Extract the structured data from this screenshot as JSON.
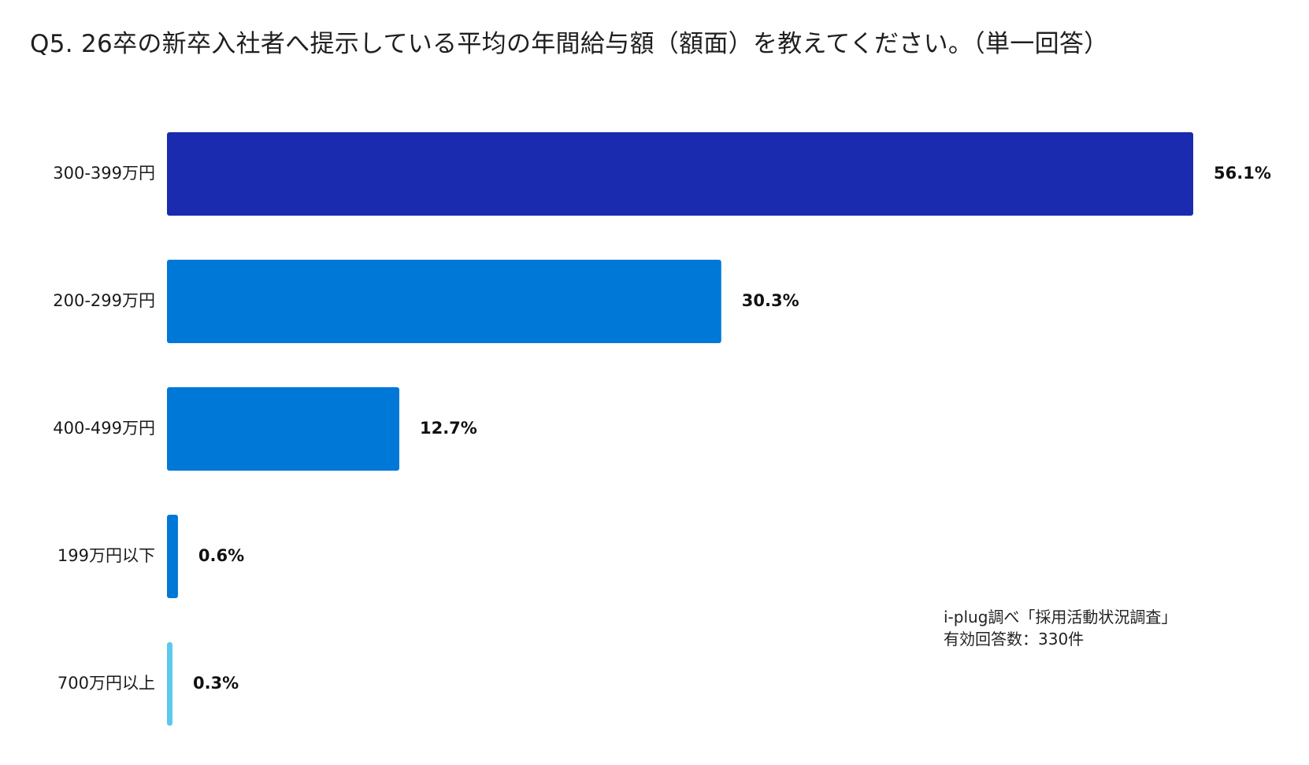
{
  "title": "Q5. 26卒の新卒入社者へ提示している平均の年間給与額（額面）を教えてください。（単一回答）",
  "note": {
    "line1": "i-plug調べ「採用活動状況調査」",
    "line2": "有効回答数：330件"
  },
  "chart_data": {
    "type": "bar",
    "orientation": "horizontal",
    "title": "Q5. 26卒の新卒入社者へ提示している平均の年間給与額（額面）を教えてください。（単一回答）",
    "categories": [
      "300-399万円",
      "200-299万円",
      "400-499万円",
      "199万円以下",
      "700万円以上"
    ],
    "values": [
      56.1,
      30.3,
      12.7,
      0.6,
      0.3
    ],
    "value_labels": [
      "56.1%",
      "30.3%",
      "12.7%",
      "0.6%",
      "0.3%"
    ],
    "colors": [
      "#1a2bb0",
      "#0078d7",
      "#0078d7",
      "#0078d7",
      "#5bc8ec"
    ],
    "xlim": [
      0,
      56.1
    ],
    "grid": false,
    "legend": "none"
  }
}
